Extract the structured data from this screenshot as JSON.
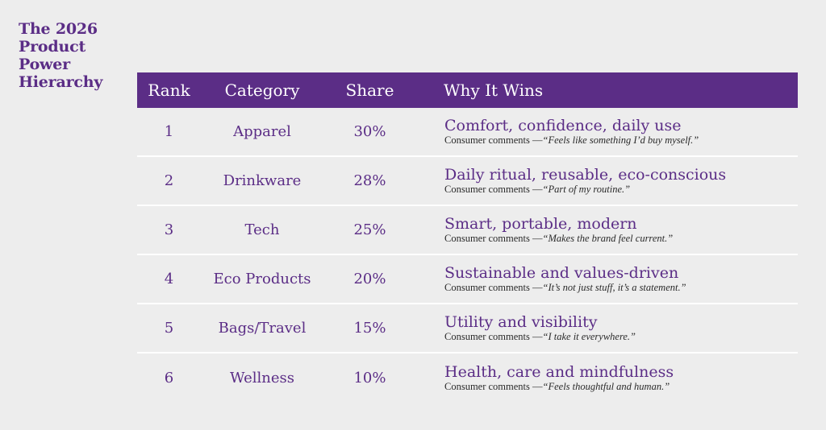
{
  "heading": "The 2026 Product Power Hierarchy",
  "table": {
    "headers": {
      "rank": "Rank",
      "category": "Category",
      "share": "Share",
      "why": "Why It Wins"
    },
    "comment_prefix": "Consumer comments —",
    "rows": [
      {
        "rank": "1",
        "category": "Apparel",
        "share": "30%",
        "why": "Comfort, confidence, daily use",
        "quote": "“Feels like something I’d buy myself.”"
      },
      {
        "rank": "2",
        "category": "Drinkware",
        "share": "28%",
        "why": "Daily ritual, reusable, eco-conscious",
        "quote": "“Part of my routine.”"
      },
      {
        "rank": "3",
        "category": "Tech",
        "share": "25%",
        "why": "Smart, portable, modern",
        "quote": "“Makes the brand feel current.”"
      },
      {
        "rank": "4",
        "category": "Eco Products",
        "share": "20%",
        "why": "Sustainable and values-driven",
        "quote": "“It’s not just stuff, it’s a statement.”"
      },
      {
        "rank": "5",
        "category": "Bags/Travel",
        "share": "15%",
        "why": "Utility and visibility",
        "quote": "“I take it everywhere.”"
      },
      {
        "rank": "6",
        "category": "Wellness",
        "share": "10%",
        "why": "Health, care and mindfulness",
        "quote": "“Feels thoughtful and human.”"
      }
    ]
  }
}
